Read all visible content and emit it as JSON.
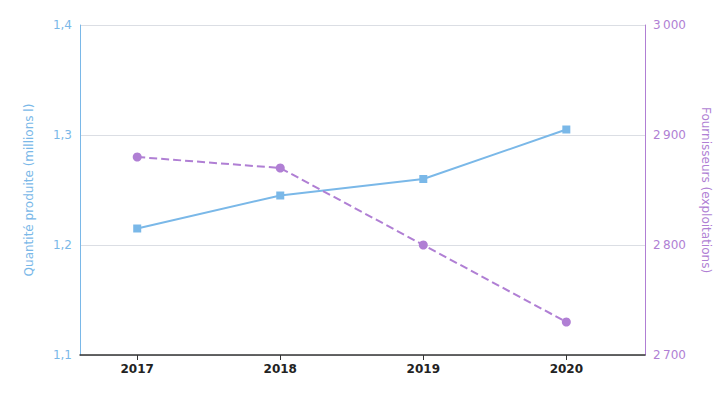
{
  "chart_data": {
    "type": "line",
    "x": [
      2017,
      2018,
      2019,
      2020
    ],
    "xlim": [
      2016.6,
      2020.55
    ],
    "xticks": [
      2017,
      2018,
      2019,
      2020
    ],
    "ylabel": "Quantité produite (millions l)",
    "ylim": [
      1.1,
      1.4
    ],
    "yticks": [
      {
        "value": 1.1,
        "label": "1,1"
      },
      {
        "value": 1.2,
        "label": "1,2"
      },
      {
        "value": 1.3,
        "label": "1,3"
      },
      {
        "value": 1.4,
        "label": "1,4"
      }
    ],
    "y2label": "Fournisseurs (exploitations)",
    "y2lim": [
      2700,
      3000
    ],
    "y2ticks": [
      {
        "value": 2700,
        "label": "2 700"
      },
      {
        "value": 2800,
        "label": "2 800"
      },
      {
        "value": 2900,
        "label": "2 900"
      },
      {
        "value": 3000,
        "label": "3 000"
      }
    ],
    "grid": true,
    "series": [
      {
        "color": "#7ab8e8",
        "values": [
          1.215,
          1.245,
          1.26,
          1.305
        ],
        "marker": "square",
        "line_style": "solid"
      },
      {
        "color": "#b07fd4",
        "values": [
          2880,
          2870,
          2800,
          2730
        ],
        "axis": "y2",
        "marker": "circle",
        "line_style": "dashed"
      }
    ]
  }
}
